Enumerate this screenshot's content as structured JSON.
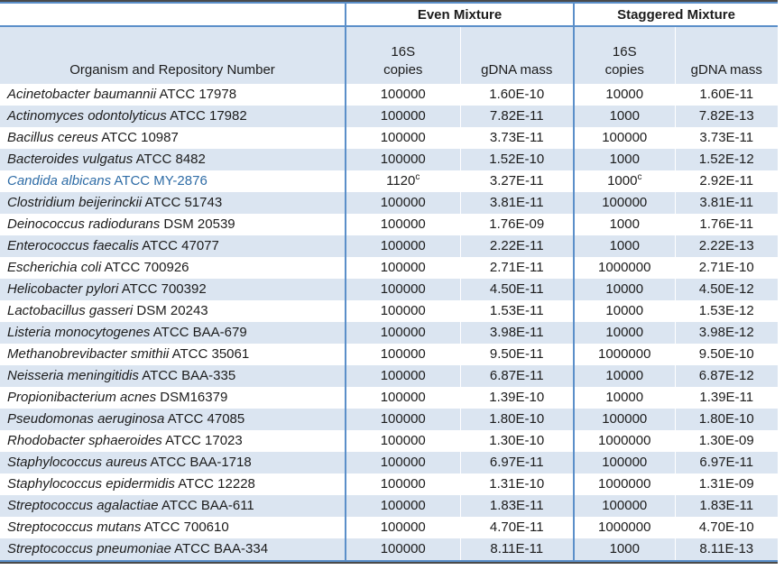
{
  "table": {
    "organism_header": "Organism and Repository Number",
    "group_headers": [
      {
        "label": "Even Mixture"
      },
      {
        "label": "Staggered Mixture"
      }
    ],
    "sub_headers": {
      "copies_line1": "16S",
      "copies_line2": "copies",
      "gdna": "gDNA mass"
    },
    "colors": {
      "stripe_fill": "#dbe5f1",
      "border_blue": "#5b8fc9",
      "outer_dark": "#4a4a4a",
      "highlight_text": "#2e6ca6",
      "text": "#1c1c1c"
    },
    "footnote_marker": "c",
    "rows": [
      {
        "organism": "Acinetobacter baumannii",
        "strain": "ATCC 17978",
        "even_copies": "100000",
        "even_sup": "",
        "even_mass": "1.60E-10",
        "stag_copies": "10000",
        "stag_sup": "",
        "stag_mass": "1.60E-11",
        "highlight": false
      },
      {
        "organism": "Actinomyces odontolyticus",
        "strain": "ATCC 17982",
        "even_copies": "100000",
        "even_sup": "",
        "even_mass": "7.82E-11",
        "stag_copies": "1000",
        "stag_sup": "",
        "stag_mass": "7.82E-13",
        "highlight": false
      },
      {
        "organism": "Bacillus cereus",
        "strain": "ATCC 10987",
        "even_copies": "100000",
        "even_sup": "",
        "even_mass": "3.73E-11",
        "stag_copies": "100000",
        "stag_sup": "",
        "stag_mass": "3.73E-11",
        "highlight": false
      },
      {
        "organism": "Bacteroides vulgatus",
        "strain": "ATCC 8482",
        "even_copies": "100000",
        "even_sup": "",
        "even_mass": "1.52E-10",
        "stag_copies": "1000",
        "stag_sup": "",
        "stag_mass": "1.52E-12",
        "highlight": false
      },
      {
        "organism": "Candida albicans",
        "strain": "ATCC MY-2876",
        "even_copies": "1120",
        "even_sup": "c",
        "even_mass": "3.27E-11",
        "stag_copies": "1000",
        "stag_sup": "c",
        "stag_mass": "2.92E-11",
        "highlight": true
      },
      {
        "organism": "Clostridium beijerinckii",
        "strain": "ATCC 51743",
        "even_copies": "100000",
        "even_sup": "",
        "even_mass": "3.81E-11",
        "stag_copies": "100000",
        "stag_sup": "",
        "stag_mass": "3.81E-11",
        "highlight": false
      },
      {
        "organism": "Deinococcus radiodurans",
        "strain": "DSM 20539",
        "even_copies": "100000",
        "even_sup": "",
        "even_mass": "1.76E-09",
        "stag_copies": "1000",
        "stag_sup": "",
        "stag_mass": "1.76E-11",
        "highlight": false
      },
      {
        "organism": "Enterococcus faecalis",
        "strain": "ATCC 47077",
        "even_copies": "100000",
        "even_sup": "",
        "even_mass": "2.22E-11",
        "stag_copies": "1000",
        "stag_sup": "",
        "stag_mass": "2.22E-13",
        "highlight": false
      },
      {
        "organism": "Escherichia coli",
        "strain": "ATCC 700926",
        "even_copies": "100000",
        "even_sup": "",
        "even_mass": "2.71E-11",
        "stag_copies": "1000000",
        "stag_sup": "",
        "stag_mass": "2.71E-10",
        "highlight": false
      },
      {
        "organism": "Helicobacter pylori",
        "strain": "ATCC 700392",
        "even_copies": "100000",
        "even_sup": "",
        "even_mass": "4.50E-11",
        "stag_copies": "10000",
        "stag_sup": "",
        "stag_mass": "4.50E-12",
        "highlight": false
      },
      {
        "organism": "Lactobacillus gasseri",
        "strain": "DSM 20243",
        "even_copies": "100000",
        "even_sup": "",
        "even_mass": "1.53E-11",
        "stag_copies": "10000",
        "stag_sup": "",
        "stag_mass": "1.53E-12",
        "highlight": false
      },
      {
        "organism": "Listeria monocytogenes",
        "strain": "ATCC BAA-679",
        "even_copies": "100000",
        "even_sup": "",
        "even_mass": "3.98E-11",
        "stag_copies": "10000",
        "stag_sup": "",
        "stag_mass": "3.98E-12",
        "highlight": false
      },
      {
        "organism": "Methanobrevibacter smithii",
        "strain": "ATCC 35061",
        "even_copies": "100000",
        "even_sup": "",
        "even_mass": "9.50E-11",
        "stag_copies": "1000000",
        "stag_sup": "",
        "stag_mass": "9.50E-10",
        "highlight": false
      },
      {
        "organism": "Neisseria meningitidis",
        "strain": "ATCC BAA-335",
        "even_copies": "100000",
        "even_sup": "",
        "even_mass": "6.87E-11",
        "stag_copies": "10000",
        "stag_sup": "",
        "stag_mass": "6.87E-12",
        "highlight": false
      },
      {
        "organism": "Propionibacterium acnes",
        "strain": "DSM16379",
        "even_copies": "100000",
        "even_sup": "",
        "even_mass": "1.39E-10",
        "stag_copies": "10000",
        "stag_sup": "",
        "stag_mass": "1.39E-11",
        "highlight": false
      },
      {
        "organism": "Pseudomonas aeruginosa",
        "strain": "ATCC 47085",
        "even_copies": "100000",
        "even_sup": "",
        "even_mass": "1.80E-10",
        "stag_copies": "100000",
        "stag_sup": "",
        "stag_mass": "1.80E-10",
        "highlight": false
      },
      {
        "organism": "Rhodobacter sphaeroides",
        "strain": "ATCC 17023",
        "even_copies": "100000",
        "even_sup": "",
        "even_mass": "1.30E-10",
        "stag_copies": "1000000",
        "stag_sup": "",
        "stag_mass": "1.30E-09",
        "highlight": false
      },
      {
        "organism": "Staphylococcus aureus",
        "strain": "ATCC BAA-1718",
        "even_copies": "100000",
        "even_sup": "",
        "even_mass": "6.97E-11",
        "stag_copies": "100000",
        "stag_sup": "",
        "stag_mass": "6.97E-11",
        "highlight": false
      },
      {
        "organism": "Staphylococcus epidermidis",
        "strain": "ATCC 12228",
        "even_copies": "100000",
        "even_sup": "",
        "even_mass": "1.31E-10",
        "stag_copies": "1000000",
        "stag_sup": "",
        "stag_mass": "1.31E-09",
        "highlight": false
      },
      {
        "organism": "Streptococcus agalactiae",
        "strain": "ATCC BAA-611",
        "even_copies": "100000",
        "even_sup": "",
        "even_mass": "1.83E-11",
        "stag_copies": "100000",
        "stag_sup": "",
        "stag_mass": "1.83E-11",
        "highlight": false
      },
      {
        "organism": "Streptococcus mutans",
        "strain": "ATCC 700610",
        "even_copies": "100000",
        "even_sup": "",
        "even_mass": "4.70E-11",
        "stag_copies": "1000000",
        "stag_sup": "",
        "stag_mass": "4.70E-10",
        "highlight": false
      },
      {
        "organism": "Streptococcus pneumoniae",
        "strain": "ATCC BAA-334",
        "even_copies": "100000",
        "even_sup": "",
        "even_mass": "8.11E-11",
        "stag_copies": "1000",
        "stag_sup": "",
        "stag_mass": "8.11E-13",
        "highlight": false
      }
    ]
  }
}
